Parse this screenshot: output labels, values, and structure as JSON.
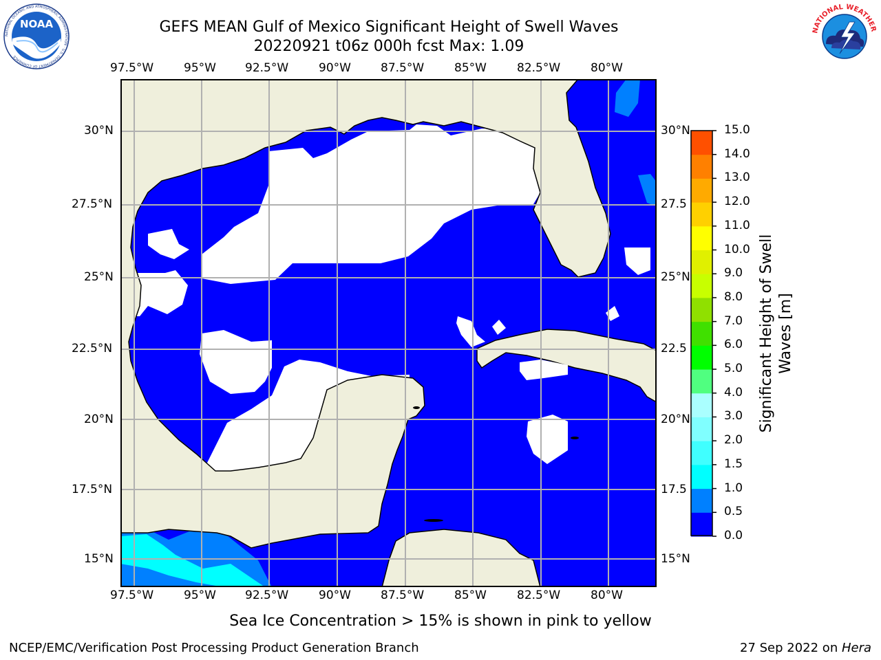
{
  "header": {
    "title_line1": "GEFS MEAN Gulf of Mexico Significant Height of Swell Waves",
    "title_line2": "20220921 t06z 000h fcst   Max: 1.09"
  },
  "logos": {
    "left": "NOAA",
    "left_ring": "NATIONAL OCEANIC AND ATMOSPHERIC ADMINISTRATION · U.S. DEPARTMENT OF COMMERCE",
    "right_ring": "NATIONAL WEATHER SERVICE"
  },
  "map": {
    "lon_labels": [
      "97.5°W",
      "95°W",
      "92.5°W",
      "90°W",
      "87.5°W",
      "85°W",
      "82.5°W",
      "80°W"
    ],
    "lat_labels_left": [
      "30°N",
      "27.5°N",
      "25°N",
      "22.5°N",
      "20°N",
      "17.5°N",
      "15°N"
    ],
    "lat_labels_right": [
      "30°N",
      "27.5",
      "25°N",
      "22.5",
      "20°N",
      "17.5",
      "15°N"
    ],
    "colors": {
      "land": "#efefdc",
      "sea_low": "#0000ff",
      "sea_mid": "#0080ff",
      "sea_high": "#00ffff",
      "grid": "#b0b0b0"
    }
  },
  "colorbar": {
    "label_line1": "Significant Height of Swell",
    "label_line2": "Waves [m]",
    "ticks": [
      "0.0",
      "0.5",
      "1.0",
      "1.5",
      "2.0",
      "3.0",
      "4.0",
      "5.0",
      "6.0",
      "7.0",
      "8.0",
      "9.0",
      "10.0",
      "11.0",
      "12.0",
      "13.0",
      "14.0",
      "15.0"
    ],
    "colors": [
      "#0000ff",
      "#0080ff",
      "#00ffff",
      "#40ffff",
      "#80ffff",
      "#aaffff",
      "#50ff80",
      "#00ff00",
      "#40e000",
      "#90e000",
      "#c8ff00",
      "#e0f000",
      "#ffff00",
      "#ffd000",
      "#ffaa00",
      "#ff8000",
      "#ff5000",
      "#ff2000",
      "#ff0000"
    ]
  },
  "note": "Sea Ice Concentration > 15% is shown in pink to yellow",
  "footer": {
    "left": "NCEP/EMC/Verification Post Processing Product Generation Branch",
    "date": "27 Sep 2022 on ",
    "machine": "Hera"
  }
}
